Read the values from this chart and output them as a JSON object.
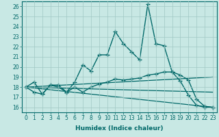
{
  "title": "",
  "xlabel": "Humidex (Indice chaleur)",
  "ylabel": "",
  "xlim": [
    -0.5,
    23.5
  ],
  "ylim": [
    15.5,
    26.5
  ],
  "bg_color": "#c8e8e4",
  "grid_color": "#a0c8c4",
  "line_color": "#006868",
  "lines": [
    {
      "x": [
        0,
        1,
        2,
        3,
        4,
        5,
        6,
        7,
        8,
        9,
        10,
        11,
        12,
        13,
        14,
        15,
        16,
        17,
        18,
        19,
        20,
        21,
        22,
        23
      ],
      "y": [
        18.0,
        18.5,
        17.3,
        18.2,
        18.2,
        17.5,
        18.5,
        20.2,
        19.6,
        21.2,
        21.2,
        23.5,
        22.3,
        21.5,
        20.7,
        26.2,
        22.3,
        22.1,
        19.5,
        18.6,
        17.2,
        16.2,
        16.0,
        16.0
      ],
      "marker": "+",
      "markersize": 4,
      "linewidth": 1.0,
      "has_marker": true
    },
    {
      "x": [
        0,
        1,
        2,
        3,
        4,
        5,
        6,
        7,
        8,
        9,
        10,
        11,
        12,
        13,
        14,
        15,
        16,
        17,
        18,
        19,
        20,
        21,
        22,
        23
      ],
      "y": [
        18.0,
        17.5,
        17.3,
        18.2,
        18.0,
        17.5,
        18.0,
        17.5,
        18.0,
        18.3,
        18.5,
        18.8,
        18.7,
        18.8,
        18.9,
        19.2,
        19.3,
        19.5,
        19.5,
        19.2,
        18.7,
        16.8,
        16.1,
        16.0
      ],
      "marker": "+",
      "markersize": 4,
      "linewidth": 1.0,
      "has_marker": true
    },
    {
      "x": [
        0,
        23
      ],
      "y": [
        18.0,
        19.0
      ],
      "marker": null,
      "markersize": 0,
      "linewidth": 0.9,
      "has_marker": false
    },
    {
      "x": [
        0,
        23
      ],
      "y": [
        18.0,
        17.5
      ],
      "marker": null,
      "markersize": 0,
      "linewidth": 0.9,
      "has_marker": false
    },
    {
      "x": [
        0,
        23
      ],
      "y": [
        18.0,
        16.0
      ],
      "marker": null,
      "markersize": 0,
      "linewidth": 0.9,
      "has_marker": false
    }
  ],
  "xticks": [
    0,
    1,
    2,
    3,
    4,
    5,
    6,
    7,
    8,
    9,
    10,
    11,
    12,
    13,
    14,
    15,
    16,
    17,
    18,
    19,
    20,
    21,
    22,
    23
  ],
  "yticks": [
    16,
    17,
    18,
    19,
    20,
    21,
    22,
    23,
    24,
    25,
    26
  ],
  "tick_fontsize": 5.5,
  "label_fontsize": 6.5
}
